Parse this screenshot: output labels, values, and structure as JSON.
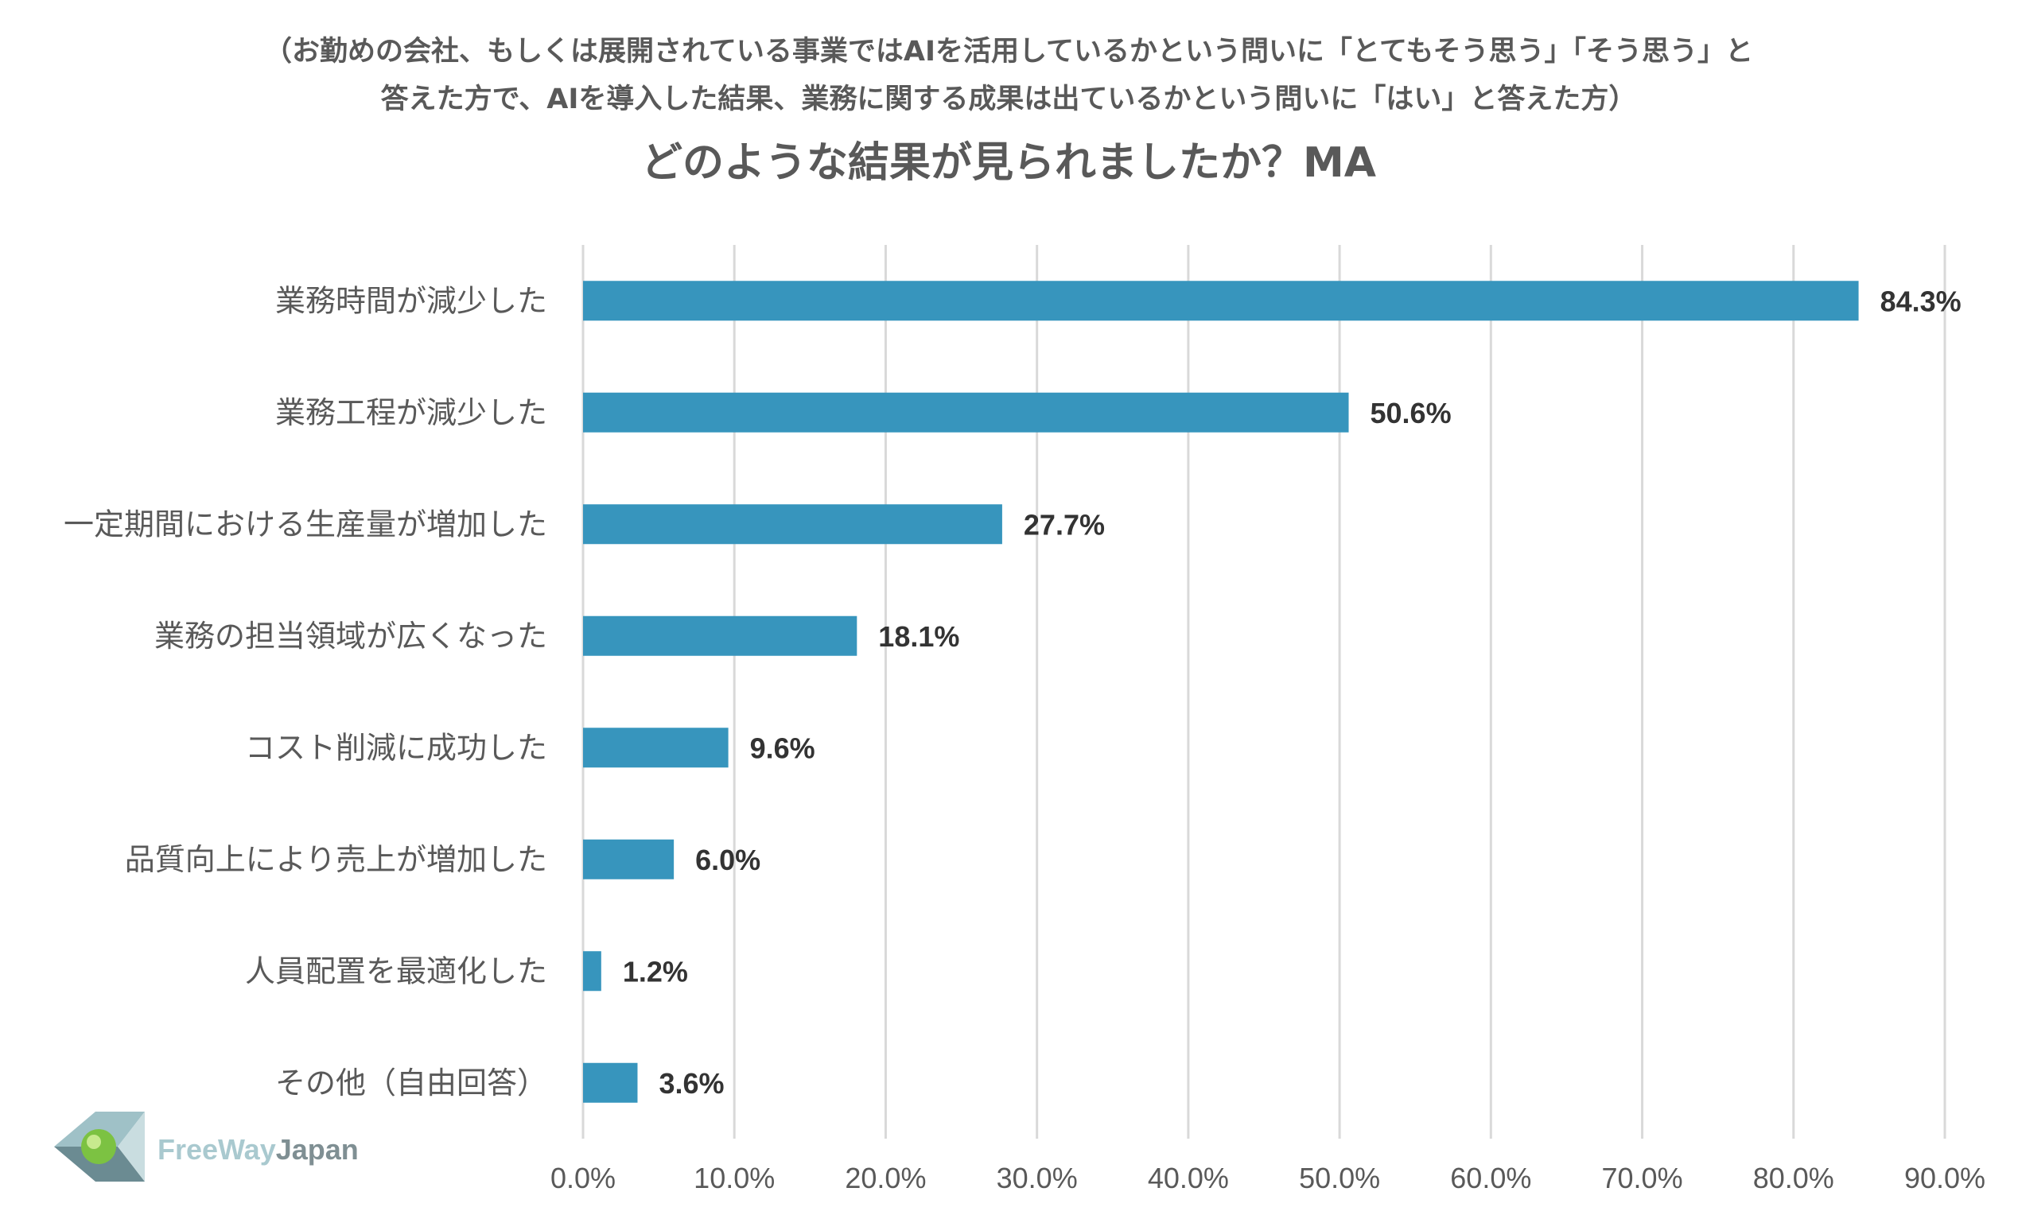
{
  "chart_data": {
    "type": "bar",
    "orientation": "horizontal",
    "subtitle_lines": [
      "（お勤めの会社、もしくは展開されている事業ではAIを活用しているかという問いに「とてもそう思う」「そう思う」と",
      "答えた方で、AIを導入した結果、業務に関する成果は出ているかという問いに「はい」と答えた方）"
    ],
    "title": "どのような結果が見られましたか？MA",
    "categories": [
      "業務時間が減少した",
      "業務工程が減少した",
      "一定期間における生産量が増加した",
      "業務の担当領域が広くなった",
      "コスト削減に成功した",
      "品質向上により売上が増加した",
      "人員配置を最適化した",
      "その他（自由回答）"
    ],
    "values": [
      84.3,
      50.6,
      27.7,
      18.1,
      9.6,
      6.0,
      1.2,
      3.6
    ],
    "data_labels": [
      "84.3%",
      "50.6%",
      "27.7%",
      "18.1%",
      "9.6%",
      "6.0%",
      "1.2%",
      "3.6%"
    ],
    "xlim": [
      0,
      90
    ],
    "xticks": [
      0,
      10,
      20,
      30,
      40,
      50,
      60,
      70,
      80,
      90
    ],
    "xtick_labels": [
      "0.0%",
      "10.0%",
      "20.0%",
      "30.0%",
      "40.0%",
      "50.0%",
      "60.0%",
      "70.0%",
      "80.0%",
      "90.0%"
    ],
    "grid": true,
    "bar_color": "#3795bd"
  },
  "logo": {
    "text_part1": "FreeWay",
    "text_part2": "Japan",
    "color_part1": "#a9c9cf",
    "color_part2": "#7f8f93"
  }
}
